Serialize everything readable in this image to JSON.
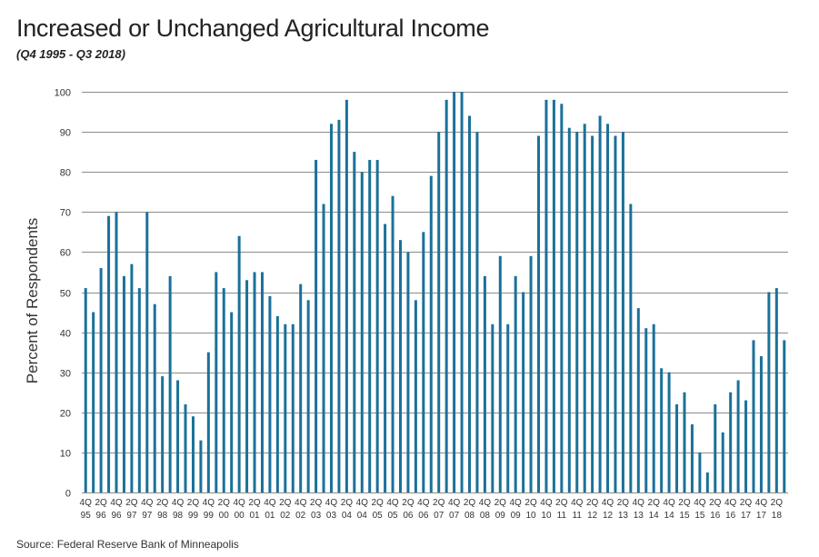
{
  "chart_data": {
    "type": "bar",
    "title": "Increased or Unchanged Agricultural Income",
    "subtitle": "(Q4 1995 - Q3 2018)",
    "ylabel": "Percent of Respondents",
    "xlabel": "",
    "source": "Source: Federal Reserve Bank of Minneapolis",
    "ylim": [
      0,
      100
    ],
    "yticks": [
      0,
      10,
      20,
      30,
      40,
      50,
      60,
      70,
      80,
      90,
      100
    ],
    "grid": true,
    "bar_color": "#1a7199",
    "grid_color": "#8c8c8c",
    "tick_labels": [
      {
        "q": "4Q",
        "y": "95"
      },
      {
        "q": "2Q",
        "y": "96"
      },
      {
        "q": "4Q",
        "y": "96"
      },
      {
        "q": "2Q",
        "y": "97"
      },
      {
        "q": "4Q",
        "y": "97"
      },
      {
        "q": "2Q",
        "y": "98"
      },
      {
        "q": "4Q",
        "y": "98"
      },
      {
        "q": "2Q",
        "y": "99"
      },
      {
        "q": "4Q",
        "y": "99"
      },
      {
        "q": "2Q",
        "y": "00"
      },
      {
        "q": "4Q",
        "y": "00"
      },
      {
        "q": "2Q",
        "y": "01"
      },
      {
        "q": "4Q",
        "y": "01"
      },
      {
        "q": "2Q",
        "y": "02"
      },
      {
        "q": "4Q",
        "y": "02"
      },
      {
        "q": "2Q",
        "y": "03"
      },
      {
        "q": "4Q",
        "y": "03"
      },
      {
        "q": "2Q",
        "y": "04"
      },
      {
        "q": "4Q",
        "y": "04"
      },
      {
        "q": "2Q",
        "y": "05"
      },
      {
        "q": "4Q",
        "y": "05"
      },
      {
        "q": "2Q",
        "y": "06"
      },
      {
        "q": "4Q",
        "y": "06"
      },
      {
        "q": "2Q",
        "y": "07"
      },
      {
        "q": "4Q",
        "y": "07"
      },
      {
        "q": "2Q",
        "y": "08"
      },
      {
        "q": "4Q",
        "y": "08"
      },
      {
        "q": "2Q",
        "y": "09"
      },
      {
        "q": "4Q",
        "y": "09"
      },
      {
        "q": "2Q",
        "y": "10"
      },
      {
        "q": "4Q",
        "y": "10"
      },
      {
        "q": "2Q",
        "y": "11"
      },
      {
        "q": "4Q",
        "y": "11"
      },
      {
        "q": "2Q",
        "y": "12"
      },
      {
        "q": "4Q",
        "y": "12"
      },
      {
        "q": "2Q",
        "y": "13"
      },
      {
        "q": "4Q",
        "y": "13"
      },
      {
        "q": "2Q",
        "y": "14"
      },
      {
        "q": "4Q",
        "y": "14"
      },
      {
        "q": "2Q",
        "y": "15"
      },
      {
        "q": "4Q",
        "y": "15"
      },
      {
        "q": "2Q",
        "y": "16"
      },
      {
        "q": "4Q",
        "y": "16"
      },
      {
        "q": "2Q",
        "y": "17"
      },
      {
        "q": "4Q",
        "y": "17"
      },
      {
        "q": "2Q",
        "y": "18"
      }
    ],
    "series": [
      {
        "name": "Increased or Unchanged Agricultural Income",
        "values": [
          51,
          45,
          56,
          69,
          70,
          54,
          57,
          51,
          70,
          47,
          29,
          54,
          28,
          22,
          19,
          13,
          35,
          55,
          51,
          45,
          64,
          53,
          55,
          55,
          49,
          44,
          42,
          42,
          52,
          48,
          83,
          72,
          92,
          93,
          98,
          85,
          80,
          83,
          83,
          67,
          74,
          63,
          60,
          48,
          65,
          79,
          90,
          98,
          100,
          100,
          94,
          90,
          54,
          42,
          59,
          42,
          54,
          50,
          59,
          89,
          98,
          98,
          97,
          91,
          90,
          92,
          89,
          94,
          92,
          89,
          90,
          72,
          46,
          41,
          42,
          31,
          30,
          22,
          25,
          17,
          10,
          5,
          22,
          15,
          25,
          28,
          23,
          38,
          34,
          50,
          51,
          38
        ]
      }
    ]
  }
}
